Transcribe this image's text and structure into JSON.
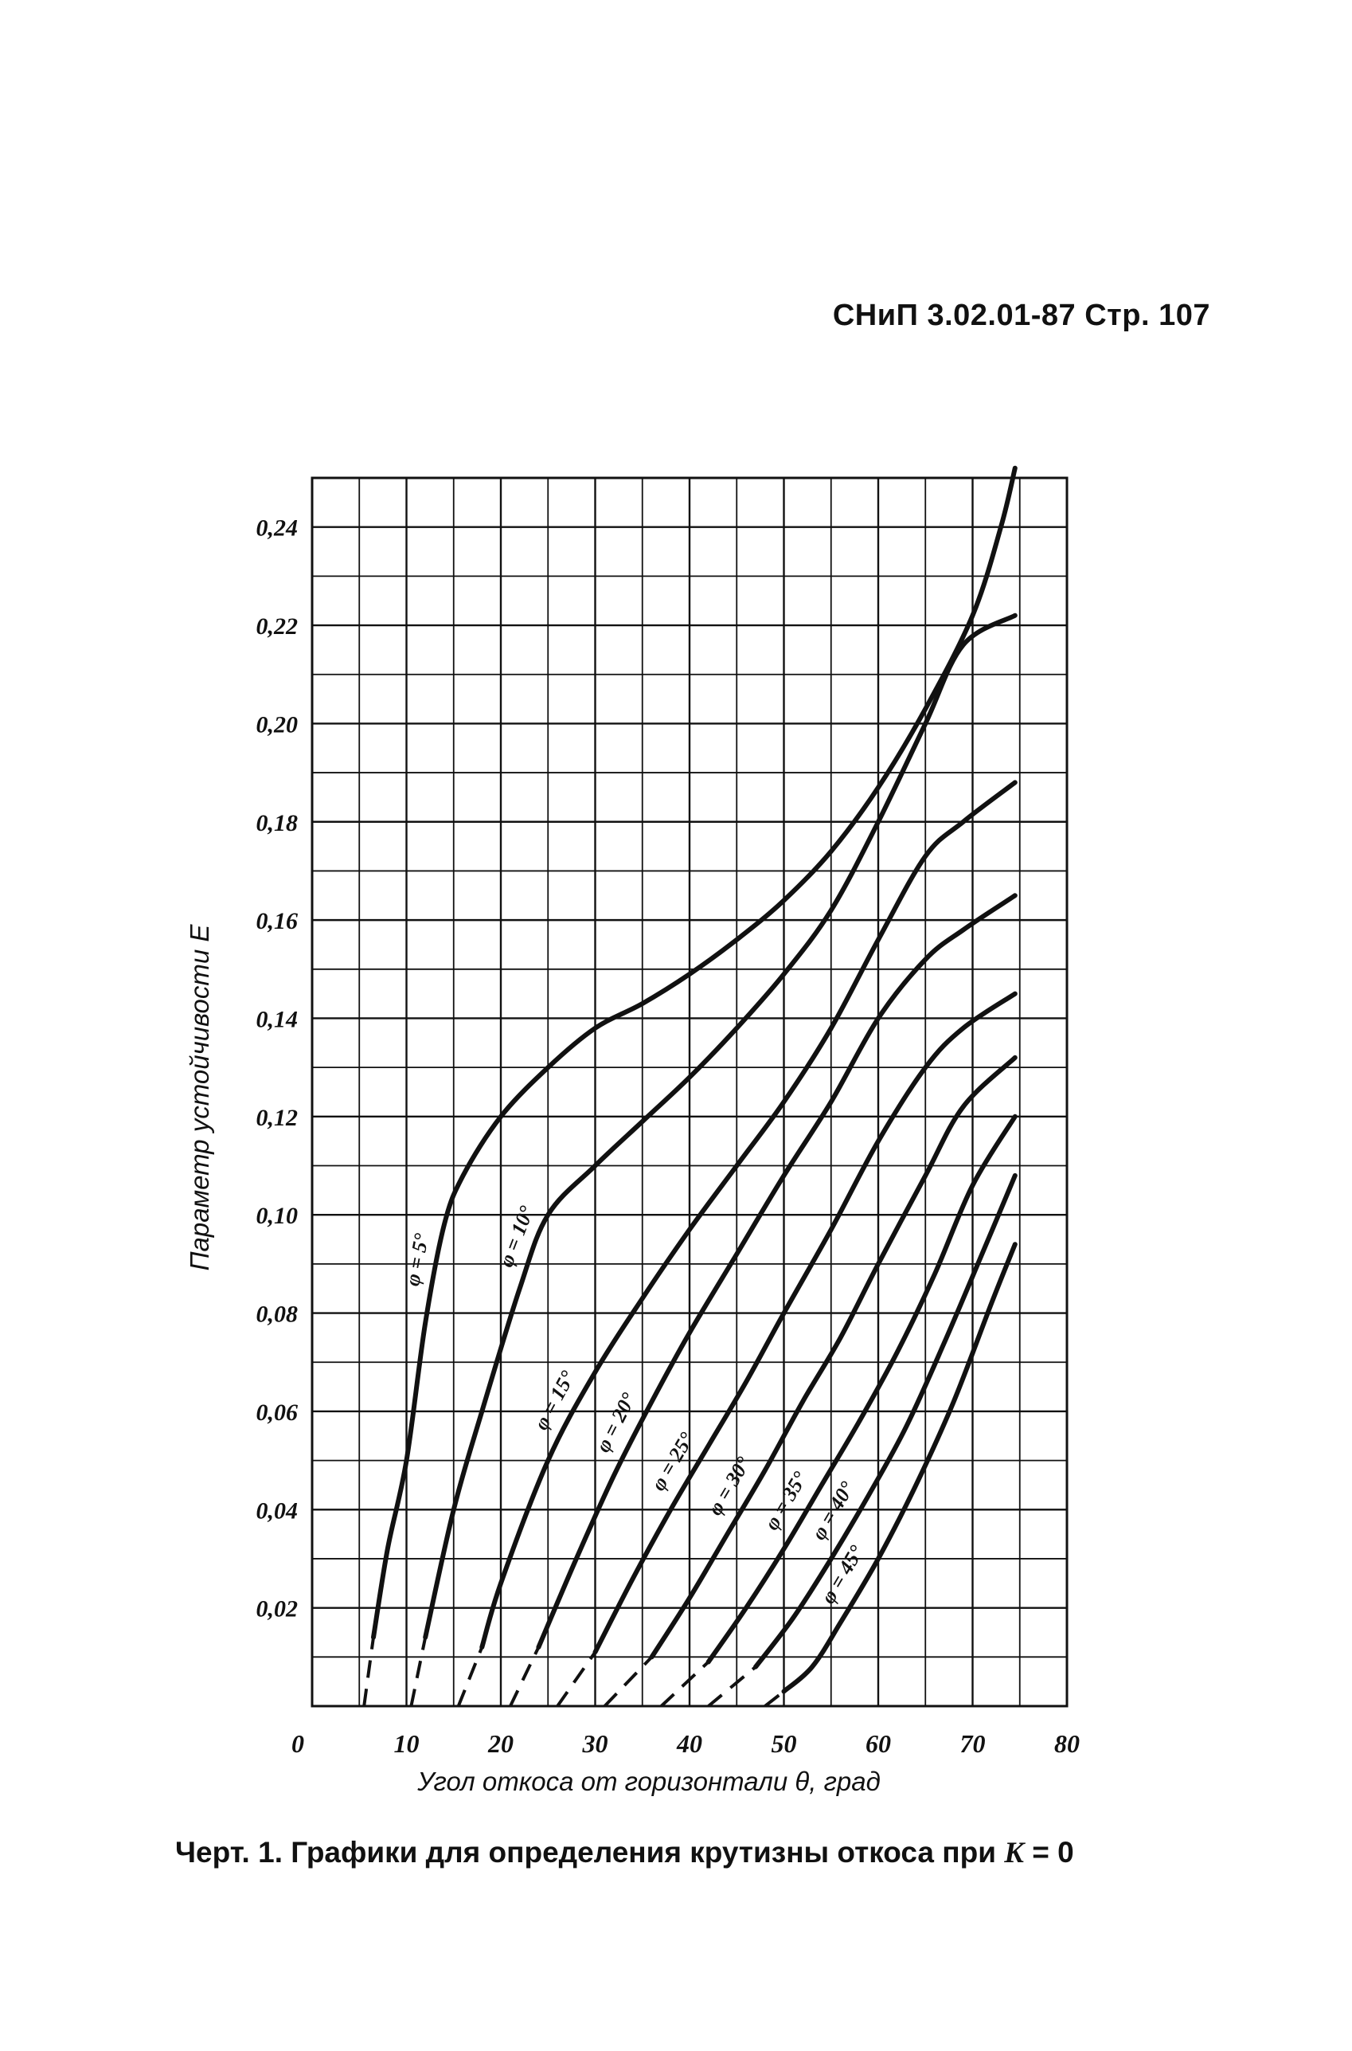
{
  "page": {
    "header": "СНиП 3.02.01-87 Стр. 107",
    "caption_prefix": "Черт. 1. Графики для определения крутизны откоса при ",
    "caption_var": "K",
    "caption_suffix": " = 0"
  },
  "chart_data": {
    "type": "line",
    "xlabel": "Угол откоса от горизонтали θ, град",
    "ylabel": "Параметр устойчивости E",
    "xlim": [
      0,
      80
    ],
    "ylim": [
      0,
      0.25
    ],
    "x_ticks": [
      "0",
      "10",
      "20",
      "30",
      "40",
      "50",
      "60",
      "70",
      "80"
    ],
    "y_ticks": [
      "0,02",
      "0,04",
      "0,06",
      "0,08",
      "0,10",
      "0,12",
      "0,14",
      "0,16",
      "0,18",
      "0,20",
      "0,22",
      "0,24"
    ],
    "grid": true,
    "line_color": "#111111",
    "series": [
      {
        "name": "φ = 5°",
        "dashed": [
          [
            5.5,
            0
          ],
          [
            6.5,
            0.014
          ]
        ],
        "points": [
          [
            6.5,
            0.014
          ],
          [
            8,
            0.032
          ],
          [
            10,
            0.05
          ],
          [
            12,
            0.078
          ],
          [
            14,
            0.098
          ],
          [
            16,
            0.108
          ],
          [
            20,
            0.12
          ],
          [
            25,
            0.13
          ],
          [
            30,
            0.138
          ],
          [
            35,
            0.143
          ],
          [
            40,
            0.149
          ],
          [
            45,
            0.156
          ],
          [
            50,
            0.164
          ],
          [
            55,
            0.174
          ],
          [
            60,
            0.187
          ],
          [
            65,
            0.203
          ],
          [
            70,
            0.222
          ],
          [
            73,
            0.24
          ],
          [
            74.5,
            0.252
          ]
        ]
      },
      {
        "name": "φ = 10°",
        "dashed": [
          [
            10.5,
            0
          ],
          [
            12,
            0.014
          ]
        ],
        "points": [
          [
            12,
            0.014
          ],
          [
            15,
            0.04
          ],
          [
            18,
            0.06
          ],
          [
            22,
            0.085
          ],
          [
            25,
            0.1
          ],
          [
            30,
            0.11
          ],
          [
            35,
            0.119
          ],
          [
            40,
            0.128
          ],
          [
            45,
            0.138
          ],
          [
            50,
            0.149
          ],
          [
            55,
            0.162
          ],
          [
            60,
            0.18
          ],
          [
            65,
            0.2
          ],
          [
            69,
            0.216
          ],
          [
            74.5,
            0.222
          ]
        ]
      },
      {
        "name": "φ = 15°",
        "dashed": [
          [
            15.5,
            0
          ],
          [
            18,
            0.012
          ]
        ],
        "points": [
          [
            18,
            0.012
          ],
          [
            20,
            0.025
          ],
          [
            25,
            0.05
          ],
          [
            30,
            0.068
          ],
          [
            35,
            0.083
          ],
          [
            40,
            0.097
          ],
          [
            45,
            0.11
          ],
          [
            50,
            0.123
          ],
          [
            55,
            0.138
          ],
          [
            60,
            0.156
          ],
          [
            65,
            0.173
          ],
          [
            69,
            0.18
          ],
          [
            74.5,
            0.188
          ]
        ]
      },
      {
        "name": "φ = 20°",
        "dashed": [
          [
            21,
            0
          ],
          [
            24,
            0.012
          ]
        ],
        "points": [
          [
            24,
            0.012
          ],
          [
            28,
            0.03
          ],
          [
            32,
            0.047
          ],
          [
            36,
            0.062
          ],
          [
            40,
            0.076
          ],
          [
            45,
            0.092
          ],
          [
            50,
            0.108
          ],
          [
            55,
            0.123
          ],
          [
            60,
            0.14
          ],
          [
            65,
            0.152
          ],
          [
            69,
            0.158
          ],
          [
            74.5,
            0.165
          ]
        ]
      },
      {
        "name": "φ = 25°",
        "dashed": [
          [
            26,
            0
          ],
          [
            30,
            0.011
          ]
        ],
        "points": [
          [
            30,
            0.011
          ],
          [
            34,
            0.026
          ],
          [
            38,
            0.04
          ],
          [
            42,
            0.053
          ],
          [
            46,
            0.066
          ],
          [
            50,
            0.08
          ],
          [
            55,
            0.097
          ],
          [
            60,
            0.115
          ],
          [
            65,
            0.13
          ],
          [
            69,
            0.138
          ],
          [
            74.5,
            0.145
          ]
        ]
      },
      {
        "name": "φ = 30°",
        "dashed": [
          [
            31,
            0
          ],
          [
            36,
            0.01
          ]
        ],
        "points": [
          [
            36,
            0.01
          ],
          [
            40,
            0.022
          ],
          [
            44,
            0.035
          ],
          [
            48,
            0.048
          ],
          [
            52,
            0.062
          ],
          [
            56,
            0.075
          ],
          [
            60,
            0.09
          ],
          [
            65,
            0.108
          ],
          [
            69,
            0.122
          ],
          [
            74.5,
            0.132
          ]
        ]
      },
      {
        "name": "φ = 35°",
        "dashed": [
          [
            37,
            0
          ],
          [
            42,
            0.009
          ]
        ],
        "points": [
          [
            42,
            0.009
          ],
          [
            46,
            0.02
          ],
          [
            50,
            0.032
          ],
          [
            54,
            0.045
          ],
          [
            58,
            0.058
          ],
          [
            62,
            0.072
          ],
          [
            66,
            0.088
          ],
          [
            70,
            0.106
          ],
          [
            74.5,
            0.12
          ]
        ]
      },
      {
        "name": "φ = 40°",
        "dashed": [
          [
            42,
            0
          ],
          [
            47,
            0.008
          ]
        ],
        "points": [
          [
            47,
            0.008
          ],
          [
            51,
            0.018
          ],
          [
            55,
            0.03
          ],
          [
            59,
            0.043
          ],
          [
            63,
            0.057
          ],
          [
            67,
            0.074
          ],
          [
            71,
            0.092
          ],
          [
            74.5,
            0.108
          ]
        ]
      },
      {
        "name": "φ = 45°",
        "dashed": [
          [
            48,
            0
          ],
          [
            50,
            0.003
          ]
        ],
        "points": [
          [
            50,
            0.003
          ],
          [
            53,
            0.008
          ],
          [
            56,
            0.017
          ],
          [
            60,
            0.03
          ],
          [
            64,
            0.045
          ],
          [
            68,
            0.062
          ],
          [
            72,
            0.082
          ],
          [
            74.5,
            0.094
          ]
        ]
      }
    ]
  }
}
